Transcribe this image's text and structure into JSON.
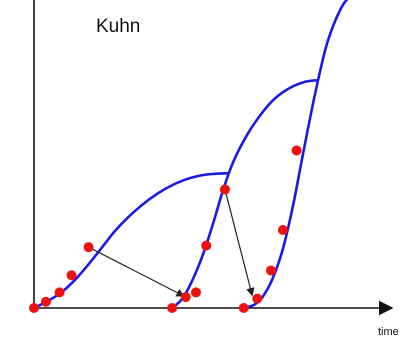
{
  "chart_data": {
    "type": "line",
    "title": "Kuhn",
    "xlabel": "time",
    "ylabel": "",
    "grid": false,
    "legend": "none",
    "colors": {
      "curve": "#1a1ae6",
      "point": "#ee1111",
      "axis": "#111111",
      "arrow": "#222222"
    },
    "xlim": [
      0,
      10
    ],
    "ylim": [
      0,
      10
    ],
    "series": [
      {
        "x": [
          0.0,
          0.4,
          0.8,
          1.2,
          1.6,
          2.0,
          2.4,
          2.9,
          3.4,
          3.9,
          4.4,
          4.9,
          5.3,
          5.7
        ],
        "y": [
          0.0,
          0.22,
          0.5,
          0.9,
          1.4,
          1.95,
          2.5,
          3.05,
          3.5,
          3.85,
          4.1,
          4.25,
          4.3,
          4.32
        ]
      },
      {
        "x": [
          4.05,
          4.35,
          4.65,
          4.95,
          5.25,
          5.55,
          5.85,
          6.25,
          6.65,
          7.05,
          7.5,
          7.95,
          8.3
        ],
        "y": [
          0.0,
          0.3,
          0.9,
          1.7,
          2.7,
          3.8,
          4.7,
          5.55,
          6.2,
          6.7,
          7.05,
          7.25,
          7.3
        ]
      },
      {
        "x": [
          6.15,
          6.45,
          6.7,
          7.0,
          7.3,
          7.6,
          7.9,
          8.25,
          8.6,
          9.0,
          9.3,
          9.5
        ],
        "y": [
          0.0,
          0.1,
          0.35,
          0.95,
          1.9,
          3.3,
          5.0,
          6.9,
          8.5,
          9.6,
          10.0,
          10.0
        ]
      }
    ],
    "points": [
      {
        "x": 0.0,
        "y": 0.0
      },
      {
        "x": 0.35,
        "y": 0.2
      },
      {
        "x": 0.75,
        "y": 0.5
      },
      {
        "x": 1.1,
        "y": 1.05
      },
      {
        "x": 1.6,
        "y": 1.95
      },
      {
        "x": 4.05,
        "y": 0.0
      },
      {
        "x": 4.45,
        "y": 0.35
      },
      {
        "x": 4.75,
        "y": 0.5
      },
      {
        "x": 5.05,
        "y": 2.0
      },
      {
        "x": 5.6,
        "y": 3.8
      },
      {
        "x": 6.15,
        "y": 0.0
      },
      {
        "x": 6.55,
        "y": 0.3
      },
      {
        "x": 6.95,
        "y": 1.2
      },
      {
        "x": 7.3,
        "y": 2.5
      },
      {
        "x": 7.7,
        "y": 5.05
      }
    ],
    "arrows": [
      {
        "from": [
          1.6,
          1.95
        ],
        "to": [
          4.4,
          0.38
        ]
      },
      {
        "from": [
          5.6,
          3.8
        ],
        "to": [
          6.4,
          0.4
        ]
      }
    ]
  }
}
